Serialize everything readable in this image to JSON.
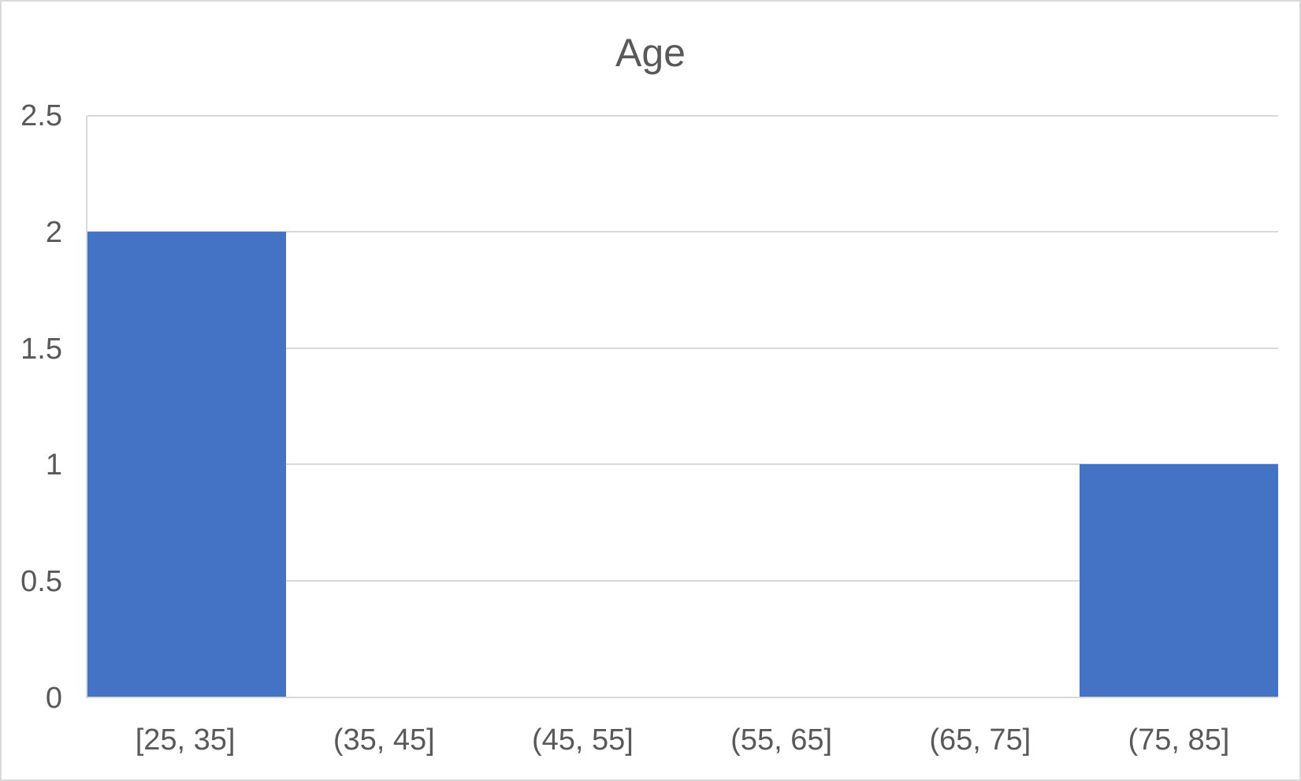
{
  "chart_data": {
    "type": "bar",
    "title": "Age",
    "xlabel": "",
    "ylabel": "",
    "categories": [
      "[25, 35]",
      "(35, 45]",
      "(45, 55]",
      "(55, 65]",
      "(65, 75]",
      "(75, 85]"
    ],
    "values": [
      2,
      0,
      0,
      0,
      0,
      1
    ],
    "ylim": [
      0,
      2.5
    ],
    "yticks": [
      0,
      0.5,
      1,
      1.5,
      2,
      2.5
    ],
    "ytick_labels": [
      "0",
      "0.5",
      "1",
      "1.5",
      "2",
      "2.5"
    ],
    "grid": true,
    "legend": false,
    "bar_gap_percent": 0,
    "colors": {
      "bar_fill": "#4472C4",
      "gridline": "#D9D9D9",
      "axis_line": "#D9D9D9",
      "text": "#595959",
      "background": "#FFFFFF",
      "chart_border": "#D9D9D9"
    }
  }
}
